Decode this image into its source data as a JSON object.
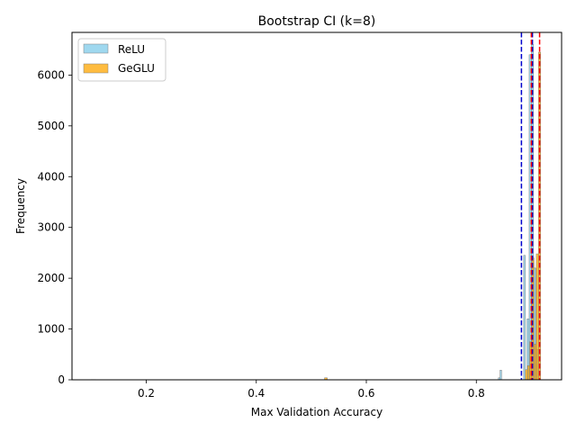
{
  "chart_data": {
    "type": "histogram",
    "title": "Bootstrap CI (k=8)",
    "xlabel": "Max Validation Accuracy",
    "ylabel": "Frequency",
    "xlim": [
      0.065,
      0.955
    ],
    "ylim": [
      0,
      6840
    ],
    "xticks": [
      0.2,
      0.4,
      0.6,
      0.8
    ],
    "xtick_labels": [
      "0.2",
      "0.4",
      "0.6",
      "0.8"
    ],
    "yticks": [
      0,
      1000,
      2000,
      3000,
      4000,
      5000,
      6000
    ],
    "ytick_labels": [
      "0",
      "1000",
      "2000",
      "3000",
      "4000",
      "5000",
      "6000"
    ],
    "legend_position": "upper-left",
    "grid": false,
    "series": [
      {
        "name": "ReLU",
        "color": "#87ceeb",
        "edgecolor": "#808080",
        "opacity": 0.8,
        "bins": [
          {
            "x0": 0.1,
            "x1": 0.108,
            "count": 5
          },
          {
            "x0": 0.84,
            "x1": 0.843,
            "count": 40
          },
          {
            "x0": 0.843,
            "x1": 0.846,
            "count": 190
          },
          {
            "x0": 0.886,
            "x1": 0.889,
            "count": 2450
          },
          {
            "x0": 0.892,
            "x1": 0.896,
            "count": 1200
          },
          {
            "x0": 0.896,
            "x1": 0.9,
            "count": 6400
          },
          {
            "x0": 0.9,
            "x1": 0.904,
            "count": 6600
          },
          {
            "x0": 0.904,
            "x1": 0.908,
            "count": 2200
          },
          {
            "x0": 0.908,
            "x1": 0.912,
            "count": 600
          }
        ],
        "ci_lines": [
          0.882,
          0.902
        ],
        "ci_color": "#0000cd"
      },
      {
        "name": "GeGLU",
        "color": "#ffa500",
        "edgecolor": "#808080",
        "opacity": 0.75,
        "bins": [
          {
            "x0": 0.524,
            "x1": 0.529,
            "count": 40
          },
          {
            "x0": 0.889,
            "x1": 0.893,
            "count": 200
          },
          {
            "x0": 0.893,
            "x1": 0.897,
            "count": 280
          },
          {
            "x0": 0.897,
            "x1": 0.901,
            "count": 750
          },
          {
            "x0": 0.901,
            "x1": 0.905,
            "count": 2400
          },
          {
            "x0": 0.905,
            "x1": 0.909,
            "count": 700
          },
          {
            "x0": 0.909,
            "x1": 0.913,
            "count": 2480
          },
          {
            "x0": 0.913,
            "x1": 0.917,
            "count": 6450
          }
        ],
        "ci_lines": [
          0.9,
          0.915
        ],
        "ci_color": "#ff0000"
      }
    ]
  }
}
